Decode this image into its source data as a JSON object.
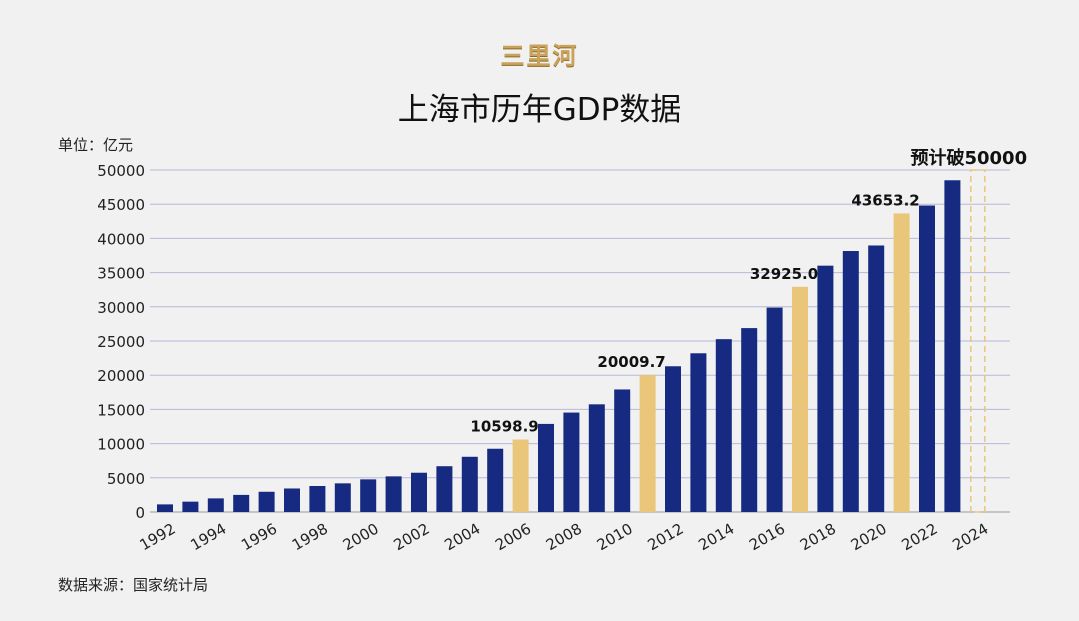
{
  "brand": "三里河",
  "chart_data": {
    "type": "bar",
    "title": "上海市历年GDP数据",
    "unit_label": "单位：亿元",
    "source": "数据来源：国家统计局",
    "ylim": [
      0,
      50000
    ],
    "yticks": [
      0,
      5000,
      10000,
      15000,
      20000,
      25000,
      30000,
      35000,
      40000,
      45000,
      50000
    ],
    "grid": true,
    "categories": [
      "1992",
      "1993",
      "1994",
      "1995",
      "1996",
      "1997",
      "1998",
      "1999",
      "2000",
      "2001",
      "2002",
      "2003",
      "2004",
      "2005",
      "2006",
      "2007",
      "2008",
      "2009",
      "2010",
      "2011",
      "2012",
      "2013",
      "2014",
      "2015",
      "2016",
      "2017",
      "2018",
      "2019",
      "2020",
      "2021",
      "2022",
      "2023",
      "2024"
    ],
    "values": [
      1114,
      1512,
      1991,
      2499,
      2958,
      3438,
      3801,
      4189,
      4771,
      5210,
      5741,
      6694,
      8073,
      9248,
      10598.9,
      12878,
      14536,
      15742,
      17915,
      20009.7,
      21305,
      23204,
      25269,
      26887,
      29887,
      32925.0,
      36012,
      38155,
      38963,
      43653.2,
      44809,
      48500,
      50000
    ],
    "highlighted": {
      "2006": "10598.9",
      "2011": "20009.7",
      "2017": "32925.0",
      "2021": "43653.2"
    },
    "forecast": {
      "year": "2024",
      "label": "预计破50000",
      "value": 50000
    },
    "xtick_labels": [
      "1992",
      "1994",
      "1996",
      "1998",
      "2000",
      "2002",
      "2004",
      "2006",
      "2008",
      "2010",
      "2012",
      "2014",
      "2016",
      "2018",
      "2020",
      "2022",
      "2024"
    ],
    "colors": {
      "bar": "#152a80",
      "highlight": "#e9c67a",
      "grid": "#b8b8d8",
      "forecast_outline": "#e9c67a"
    }
  }
}
